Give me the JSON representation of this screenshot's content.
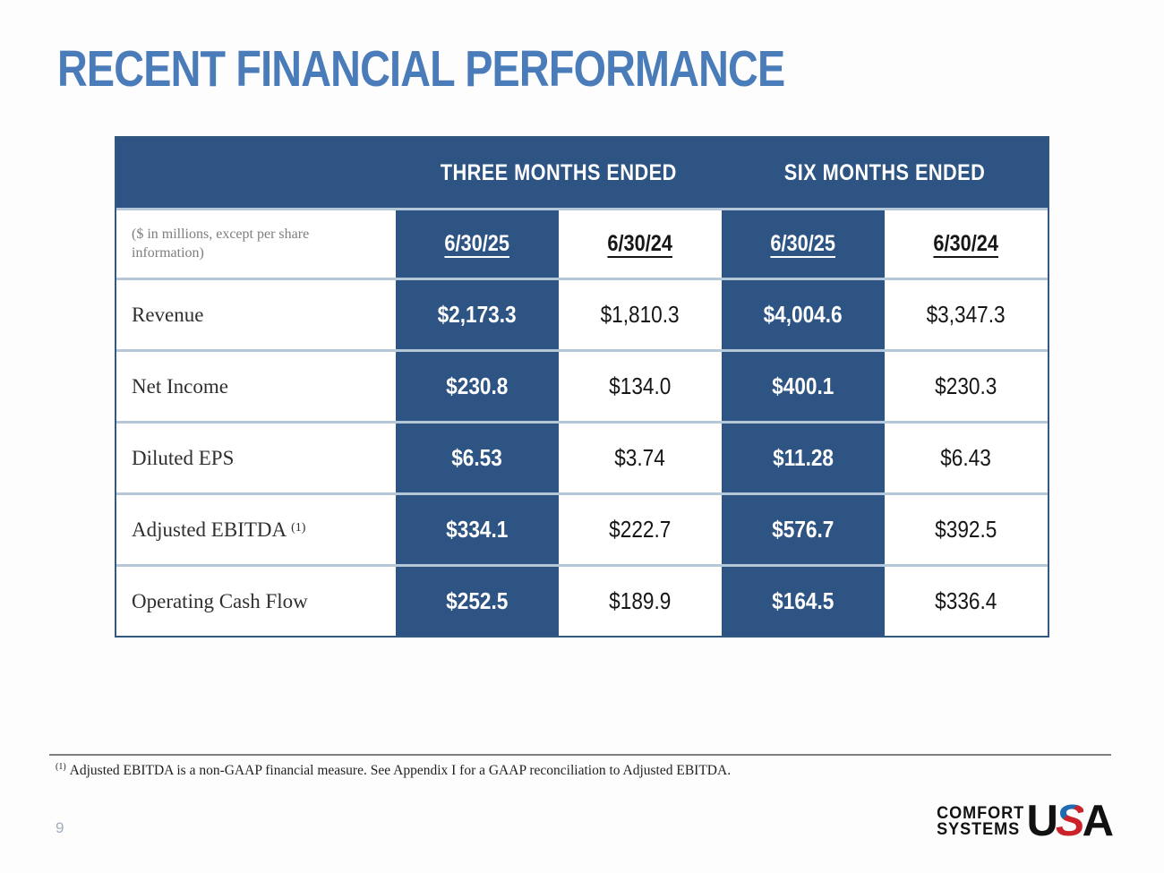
{
  "slide": {
    "title": "RECENT FINANCIAL PERFORMANCE",
    "page_number": "9",
    "footnote": {
      "marker": "(1)",
      "text": "Adjusted EBITDA is a non-GAAP financial measure. See Appendix I for a GAAP reconciliation to Adjusted EBITDA."
    }
  },
  "table": {
    "group_headers": [
      "THREE MONTHS ENDED",
      "SIX MONTHS ENDED"
    ],
    "unit_note": "($ in millions, except per share information)",
    "column_headers": [
      "6/30/25",
      "6/30/24",
      "6/30/25",
      "6/30/24"
    ],
    "rows": [
      {
        "label": "Revenue",
        "values": [
          "$2,173.3",
          "$1,810.3",
          "$4,004.6",
          "$3,347.3"
        ]
      },
      {
        "label": "Net Income",
        "values": [
          "$230.8",
          "$134.0",
          "$400.1",
          "$230.3"
        ]
      },
      {
        "label": "Diluted EPS",
        "values": [
          "$6.53",
          "$3.74",
          "$11.28",
          "$6.43"
        ]
      },
      {
        "label": "Adjusted EBITDA",
        "label_superscript": "(1)",
        "values": [
          "$334.1",
          "$222.7",
          "$576.7",
          "$392.5"
        ]
      },
      {
        "label": "Operating Cash Flow",
        "values": [
          "$252.5",
          "$189.9",
          "$164.5",
          "$336.4"
        ]
      }
    ]
  },
  "logo": {
    "line1": "COMFORT",
    "line2": "SYSTEMS",
    "usa": [
      "U",
      "S",
      "A"
    ]
  },
  "colors": {
    "dark_blue": "#2d5482",
    "title_blue": "#4a7cba",
    "row_separator": "#b5c8da",
    "table_border": "#33597f",
    "muted_text": "#7e7e7e",
    "label_text": "#2f2f2f",
    "footnote_text": "#1f1f1f",
    "page_number": "#9fadbd",
    "rule_gray": "#808080",
    "logo_red": "#cc2229",
    "logo_blue": "#1f6cb5"
  }
}
